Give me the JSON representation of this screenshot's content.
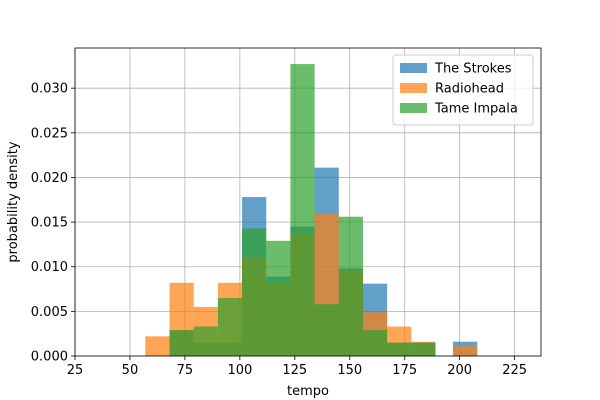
{
  "chart_data": {
    "type": "histogram",
    "xlabel": "tempo",
    "ylabel": "probability density",
    "xlim": [
      25,
      237
    ],
    "ylim": [
      0,
      0.0345
    ],
    "xticks": [
      25,
      50,
      75,
      100,
      125,
      150,
      175,
      200,
      225
    ],
    "yticks": [
      0.0,
      0.005,
      0.01,
      0.015,
      0.02,
      0.025,
      0.03
    ],
    "ytick_labels": [
      "0.000",
      "0.005",
      "0.010",
      "0.015",
      "0.020",
      "0.025",
      "0.030"
    ],
    "grid": true,
    "legend_position": "top-right",
    "series": [
      {
        "name": "The Strokes",
        "color": "#1f77b4",
        "opacity": 0.7,
        "bins": [
          {
            "x0": 68,
            "x1": 79,
            "value": 0.0029
          },
          {
            "x0": 79,
            "x1": 90,
            "value": 0.0015
          },
          {
            "x0": 90,
            "x1": 101,
            "value": 0.0015
          },
          {
            "x0": 101,
            "x1": 112,
            "value": 0.0178
          },
          {
            "x0": 112,
            "x1": 123,
            "value": 0.0089
          },
          {
            "x0": 123,
            "x1": 134,
            "value": 0.0145
          },
          {
            "x0": 134,
            "x1": 145,
            "value": 0.0211
          },
          {
            "x0": 145,
            "x1": 156,
            "value": 0.0098
          },
          {
            "x0": 156,
            "x1": 167,
            "value": 0.0081
          },
          {
            "x0": 167,
            "x1": 178,
            "value": 0.0015
          },
          {
            "x0": 178,
            "x1": 189,
            "value": 0.0015
          },
          {
            "x0": 197,
            "x1": 208,
            "value": 0.0016
          }
        ]
      },
      {
        "name": "Radiohead",
        "color": "#ff7f0e",
        "opacity": 0.7,
        "bins": [
          {
            "x0": 57,
            "x1": 68,
            "value": 0.0022
          },
          {
            "x0": 68,
            "x1": 79,
            "value": 0.0082
          },
          {
            "x0": 79,
            "x1": 90,
            "value": 0.0055
          },
          {
            "x0": 90,
            "x1": 101,
            "value": 0.0082
          },
          {
            "x0": 101,
            "x1": 112,
            "value": 0.011
          },
          {
            "x0": 112,
            "x1": 123,
            "value": 0.0082
          },
          {
            "x0": 123,
            "x1": 134,
            "value": 0.0137
          },
          {
            "x0": 134,
            "x1": 145,
            "value": 0.0159
          },
          {
            "x0": 145,
            "x1": 156,
            "value": 0.0096
          },
          {
            "x0": 156,
            "x1": 167,
            "value": 0.0049
          },
          {
            "x0": 167,
            "x1": 178,
            "value": 0.0033
          },
          {
            "x0": 178,
            "x1": 189,
            "value": 0.0016
          },
          {
            "x0": 197,
            "x1": 208,
            "value": 0.0011
          }
        ]
      },
      {
        "name": "Tame Impala",
        "color": "#2ca02c",
        "opacity": 0.7,
        "bins": [
          {
            "x0": 68,
            "x1": 79,
            "value": 0.0029
          },
          {
            "x0": 79,
            "x1": 90,
            "value": 0.0033
          },
          {
            "x0": 90,
            "x1": 101,
            "value": 0.0065
          },
          {
            "x0": 101,
            "x1": 112,
            "value": 0.0143
          },
          {
            "x0": 112,
            "x1": 123,
            "value": 0.0129
          },
          {
            "x0": 123,
            "x1": 134,
            "value": 0.0327
          },
          {
            "x0": 134,
            "x1": 145,
            "value": 0.0058
          },
          {
            "x0": 145,
            "x1": 156,
            "value": 0.0156
          },
          {
            "x0": 156,
            "x1": 167,
            "value": 0.0029
          },
          {
            "x0": 167,
            "x1": 178,
            "value": 0.0015
          },
          {
            "x0": 178,
            "x1": 189,
            "value": 0.0015
          }
        ]
      }
    ]
  }
}
